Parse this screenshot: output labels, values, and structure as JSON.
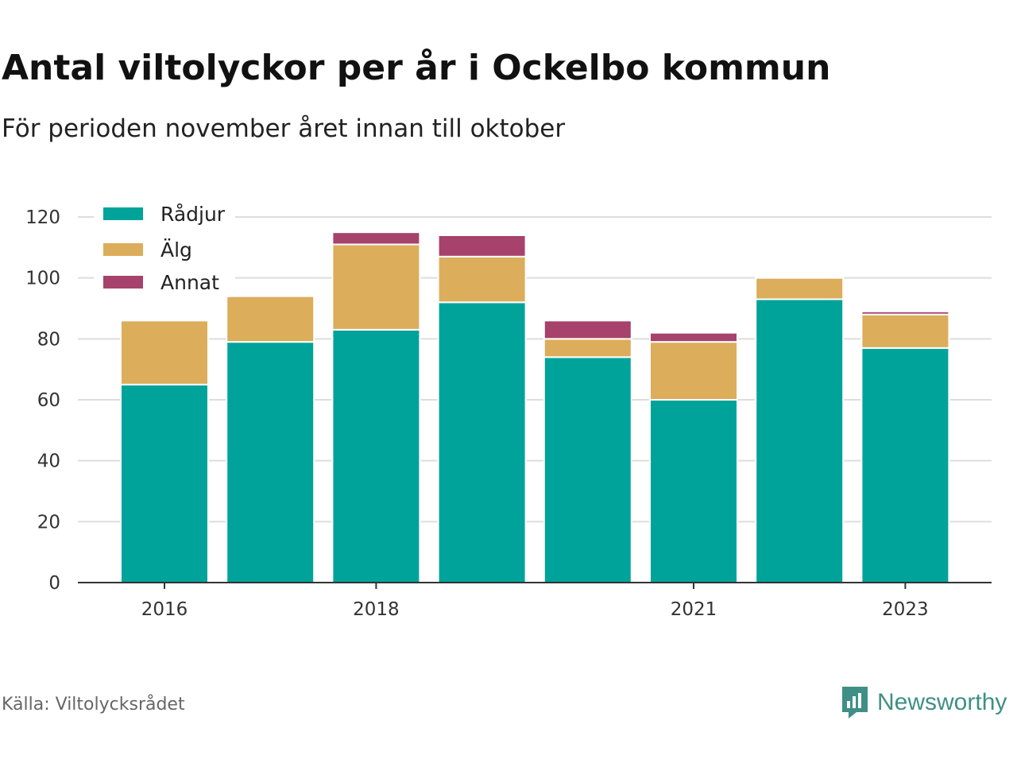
{
  "title": "Antal viltolyckor per år i Ockelbo kommun",
  "subtitle": "För perioden november året innan till oktober",
  "source": "Källa: Viltolycksrådet",
  "brand": {
    "name": "Newsworthy",
    "icon": "newsworthy-logo-icon"
  },
  "chart_data": {
    "type": "bar",
    "stacked": true,
    "x": [
      2016,
      2017,
      2018,
      2019,
      2020,
      2021,
      2022,
      2023
    ],
    "x_tick_labels": [
      "2016",
      "2018",
      "2021",
      "2023"
    ],
    "x_tick_values": [
      2016,
      2018,
      2021,
      2023
    ],
    "series": [
      {
        "name": "Rådjur",
        "color": "#00a39a",
        "values": [
          65,
          79,
          83,
          92,
          74,
          60,
          93,
          77
        ]
      },
      {
        "name": "Älg",
        "color": "#dcad5a",
        "values": [
          21,
          15,
          28,
          15,
          6,
          19,
          7,
          11
        ]
      },
      {
        "name": "Annat",
        "color": "#a6426b",
        "values": [
          0,
          0,
          4,
          7,
          6,
          3,
          0,
          1
        ]
      }
    ],
    "ylim": [
      0,
      120
    ],
    "y_ticks": [
      0,
      20,
      40,
      60,
      80,
      100,
      120
    ],
    "grid": true,
    "legend_position": "top-left"
  }
}
